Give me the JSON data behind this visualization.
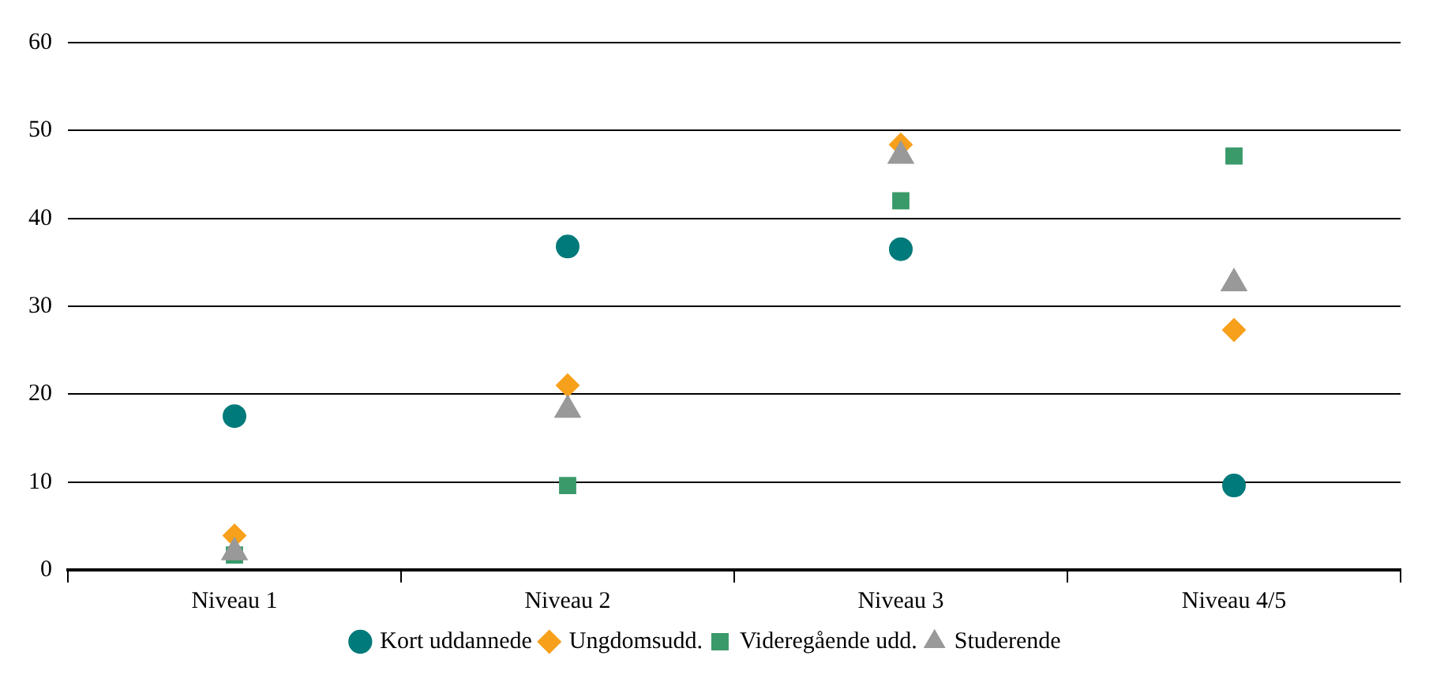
{
  "chart_data": {
    "type": "scatter",
    "categories": [
      "Niveau 1",
      "Niveau 2",
      "Niveau 3",
      "Niveau 4/5"
    ],
    "ylim": [
      0,
      60
    ],
    "yticks": [
      0,
      10,
      20,
      30,
      40,
      50,
      60
    ],
    "grid": "y",
    "legend": "bottom",
    "series": [
      {
        "name": "Kort uddannede",
        "color": "#007a7a",
        "marker": "circle",
        "values": [
          17.5,
          36.8,
          36.5,
          9.6
        ]
      },
      {
        "name": "Ungdomsudd.",
        "color": "#f7a01c",
        "marker": "diamond",
        "values": [
          3.9,
          21.0,
          48.4,
          27.3
        ]
      },
      {
        "name": "Videregående udd.",
        "color": "#3a9a6a",
        "marker": "square",
        "values": [
          1.7,
          9.6,
          42.0,
          47.1
        ]
      },
      {
        "name": "Studerende",
        "color": "#999999",
        "marker": "triangle",
        "values": [
          2.0,
          18.2,
          47.1,
          32.6
        ]
      }
    ]
  }
}
